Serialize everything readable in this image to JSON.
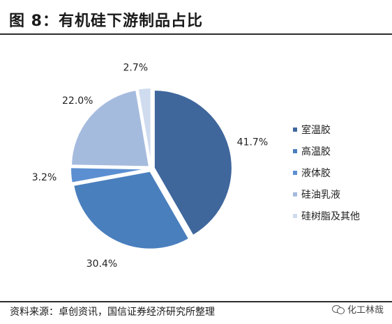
{
  "header": {
    "title": "图 8：有机硅下游制品占比"
  },
  "footer": {
    "source": "资料来源：卓创资讯，国信证券经济研究所整理",
    "watermark": "化工林哉"
  },
  "colors": {
    "rule": "#2c2c2c"
  },
  "chart_data": {
    "type": "pie",
    "title": "",
    "start_angle_deg": 0,
    "direction": "clockwise",
    "exploded": true,
    "legend_position": "right",
    "slices": [
      {
        "label": "室温胶",
        "value": 41.7,
        "value_label": "41.7%",
        "color": "#3f679c"
      },
      {
        "label": "高温胶",
        "value": 30.4,
        "value_label": "30.4%",
        "color": "#4a7fbd"
      },
      {
        "label": "液体胶",
        "value": 3.2,
        "value_label": "3.2%",
        "color": "#5b8fd1"
      },
      {
        "label": "硅油乳液",
        "value": 22.0,
        "value_label": "22.0%",
        "color": "#a5bbde"
      },
      {
        "label": "硅树脂及其他",
        "value": 2.7,
        "value_label": "2.7%",
        "color": "#cfdbee"
      }
    ]
  }
}
